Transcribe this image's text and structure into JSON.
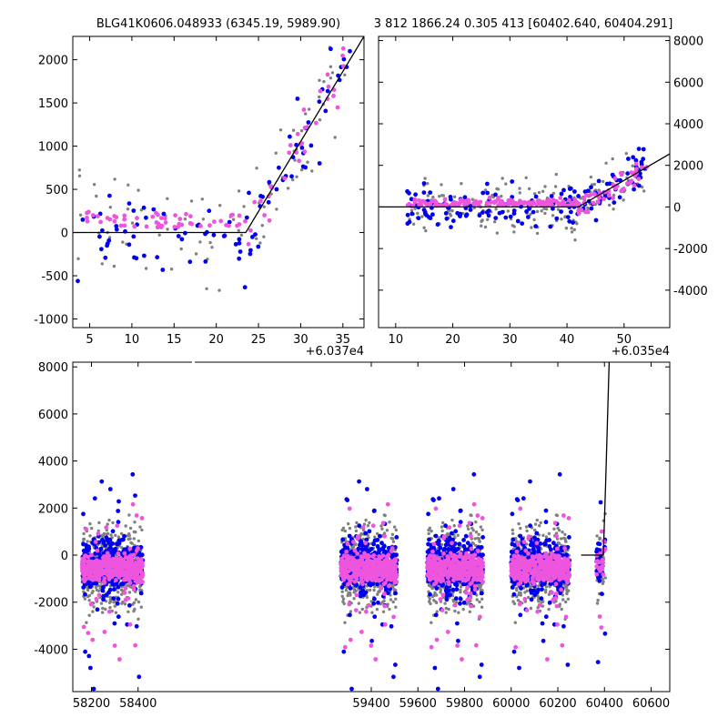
{
  "titles": {
    "left": "BLG41K0606.048933 (6345.19, 5989.90)",
    "right": "3 812 1866.24 0.305 413 [60402.640, 60404.291]"
  },
  "chart_data": [
    {
      "type": "scatter",
      "panel": "top-left",
      "x_offset_label": "+6.037e4",
      "xlim": [
        3,
        37.5
      ],
      "ylim": [
        -1100,
        2270
      ],
      "x_ticks": [
        5,
        10,
        15,
        20,
        25,
        30,
        35
      ],
      "y_ticks": [
        -1000,
        -500,
        0,
        500,
        1000,
        1500,
        2000
      ],
      "y_axis_side": "left",
      "colors": {
        "gray": "#808080",
        "blue": "#0000ee",
        "magenta": "#ee55dd"
      },
      "model_line": {
        "x": [
          3,
          23.5,
          37.5
        ],
        "y": [
          0,
          0,
          2270
        ]
      }
    },
    {
      "type": "scatter",
      "panel": "top-right",
      "x_offset_label": "+6.035e4",
      "xlim": [
        7,
        58
      ],
      "ylim": [
        -5800,
        8200
      ],
      "x_ticks": [
        10,
        20,
        30,
        40,
        50
      ],
      "y_ticks": [
        -4000,
        -2000,
        0,
        2000,
        4000,
        6000,
        8000
      ],
      "y_axis_side": "right",
      "colors": {
        "gray": "#808080",
        "blue": "#0000ee",
        "magenta": "#ee55dd"
      },
      "model_line": {
        "x": [
          7,
          42,
          58
        ],
        "y": [
          0,
          0,
          2550
        ]
      }
    },
    {
      "type": "scatter",
      "panel": "bottom",
      "xlim": [
        58120,
        60680
      ],
      "ylim": [
        -5800,
        8200
      ],
      "x_ticks": [
        58200,
        58400,
        59400,
        59600,
        59800,
        60000,
        60200,
        60400,
        60600
      ],
      "y_ticks": [
        -4000,
        -2000,
        0,
        2000,
        4000,
        6000,
        8000
      ],
      "y_axis_side": "left",
      "seasons": [
        [
          58160,
          58420
        ],
        [
          59270,
          59510
        ],
        [
          59640,
          59880
        ],
        [
          60000,
          60250
        ],
        [
          60365,
          60405
        ]
      ],
      "colors": {
        "gray": "#808080",
        "blue": "#0000ee",
        "magenta": "#ee55dd"
      },
      "model_line": {
        "x": [
          60300,
          60395,
          60405,
          60420
        ],
        "y": [
          0,
          0,
          3000,
          8200
        ]
      }
    }
  ]
}
